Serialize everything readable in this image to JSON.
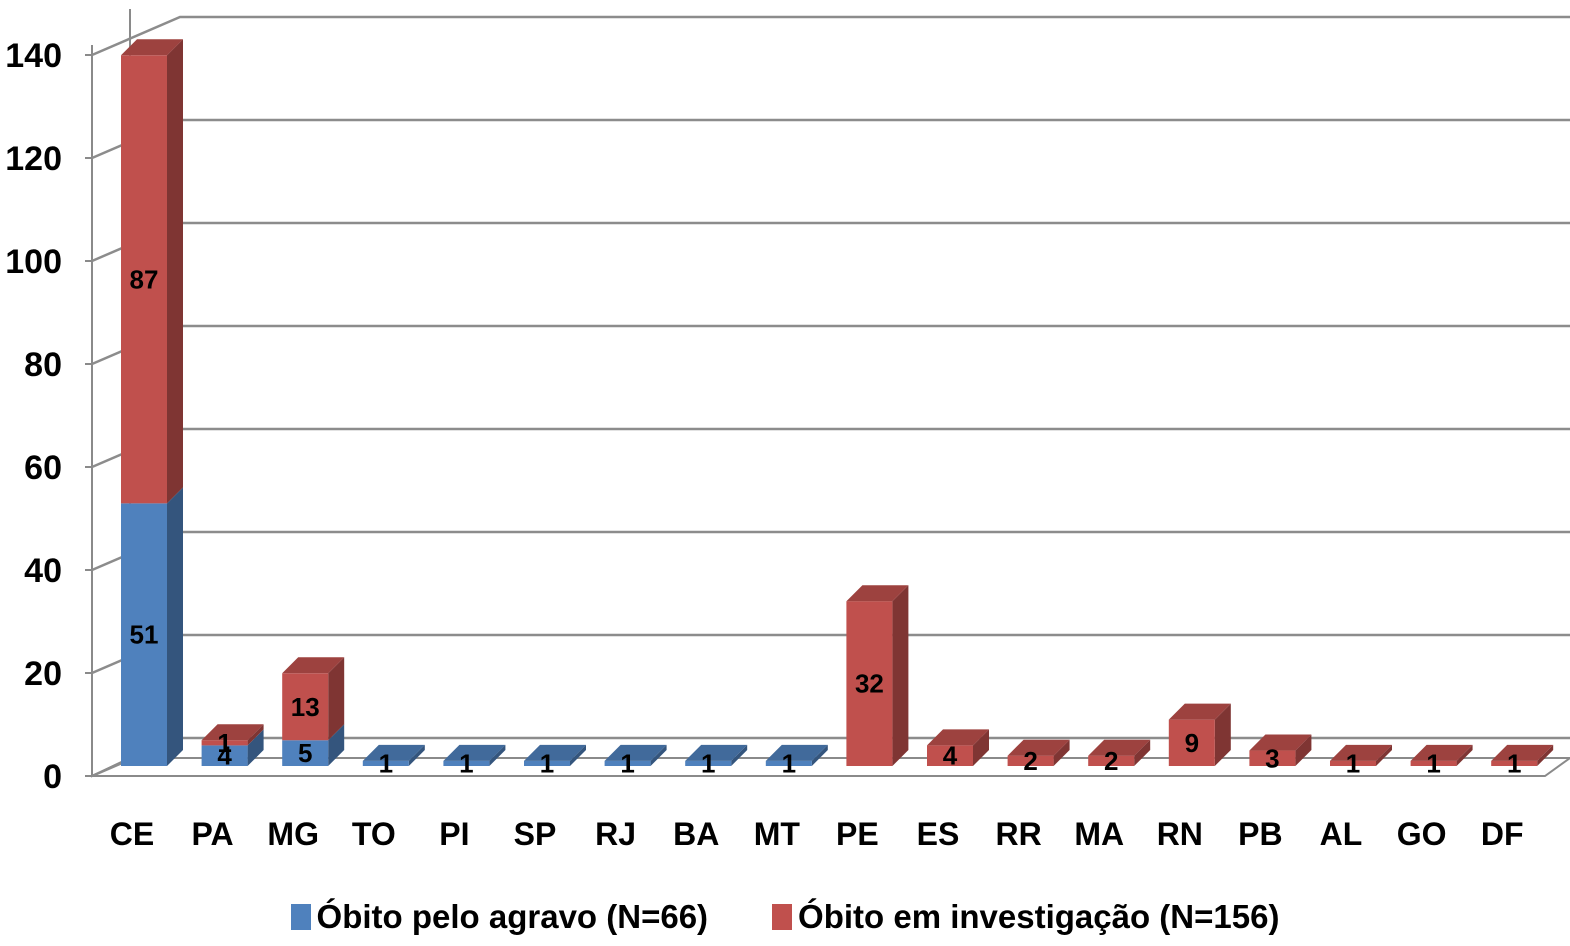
{
  "chart_data": {
    "type": "bar",
    "stacked": true,
    "style": "3d-column",
    "categories": [
      "CE",
      "PA",
      "MG",
      "TO",
      "PI",
      "SP",
      "RJ",
      "BA",
      "MT",
      "PE",
      "ES",
      "RR",
      "MA",
      "RN",
      "PB",
      "AL",
      "GO",
      "DF"
    ],
    "series": [
      {
        "name": "Óbito pelo agravo (N=66)",
        "color": "#4F81BD",
        "values": [
          51,
          4,
          5,
          1,
          1,
          1,
          1,
          1,
          1,
          0,
          0,
          0,
          0,
          0,
          0,
          0,
          0,
          0
        ],
        "labels": [
          "51",
          "4",
          "5",
          "1",
          "1",
          "1",
          "1",
          "1",
          "1",
          "",
          "",
          "",
          "",
          "",
          "",
          "",
          "",
          ""
        ]
      },
      {
        "name": "Óbito em investigação (N=156)",
        "color": "#C0504D",
        "values": [
          87,
          1,
          13,
          0,
          0,
          0,
          0,
          0,
          0,
          32,
          4,
          2,
          2,
          9,
          3,
          1,
          1,
          1
        ],
        "labels": [
          "87",
          "1",
          "13",
          "",
          "",
          "",
          "",
          "",
          "",
          "32",
          "4",
          "2",
          "2",
          "9",
          "3",
          "1",
          "1",
          "1"
        ]
      }
    ],
    "yticks": [
      "0",
      "20",
      "40",
      "60",
      "80",
      "100",
      "120",
      "140"
    ],
    "ylim": [
      0,
      140
    ],
    "grid": true,
    "legend_position": "bottom"
  }
}
